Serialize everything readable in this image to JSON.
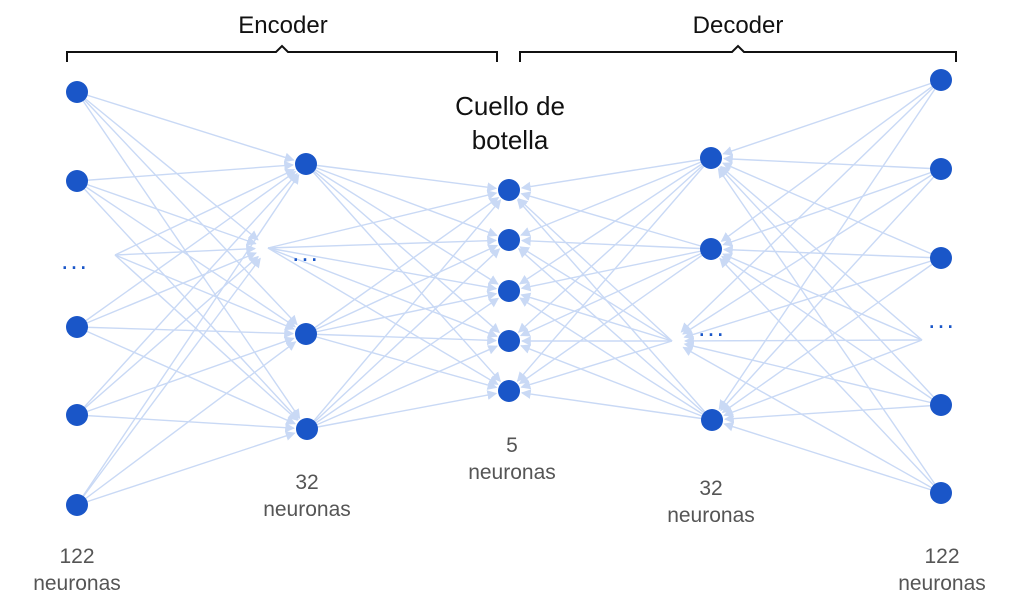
{
  "labels": {
    "encoder": "Encoder",
    "decoder": "Decoder",
    "bottleneck_line1": "Cuello de",
    "bottleneck_line2": "botella",
    "ellipsis": "...",
    "layers": [
      {
        "line1": "122",
        "line2": "neuronas"
      },
      {
        "line1": "32",
        "line2": "neuronas"
      },
      {
        "line1": "5",
        "line2": "neuronas"
      },
      {
        "line1": "32",
        "line2": "neuronas"
      },
      {
        "line1": "122",
        "line2": "neuronas"
      }
    ]
  },
  "colors": {
    "node": "#1a56c8",
    "edge": "#c9d9f5",
    "bracket": "#111111",
    "ellipsis": "#1a56c8"
  }
}
